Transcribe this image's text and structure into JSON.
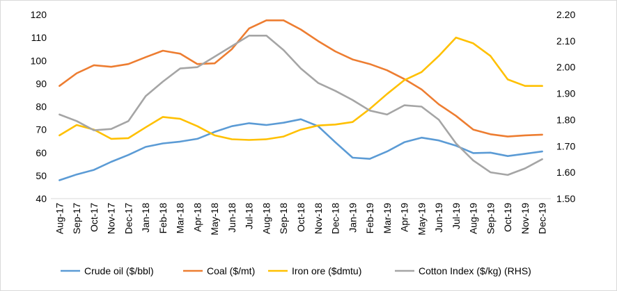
{
  "chart_data": {
    "type": "line",
    "categories": [
      "Aug-17",
      "Sep-17",
      "Oct-17",
      "Nov-17",
      "Dec-17",
      "Jan-18",
      "Feb-18",
      "Mar-18",
      "Apr-18",
      "May-18",
      "Jun-18",
      "Jul-18",
      "Aug-18",
      "Sep-18",
      "Oct-18",
      "Nov-18",
      "Dec-18",
      "Jan-19",
      "Feb-19",
      "Mar-19",
      "Apr-19",
      "May-19",
      "Jun-19",
      "Jul-19",
      "Aug-19",
      "Sep-19",
      "Oct-19",
      "Nov-19",
      "Dec-19"
    ],
    "ylim": [
      40,
      120
    ],
    "yticks": [
      40,
      50,
      60,
      70,
      80,
      90,
      100,
      110,
      120
    ],
    "y2lim": [
      1.5,
      2.2
    ],
    "y2ticks": [
      "1.50",
      "1.60",
      "1.70",
      "1.80",
      "1.90",
      "2.00",
      "2.10",
      "2.20"
    ],
    "grid": false,
    "legend_position": "bottom",
    "series": [
      {
        "name": "Crude oil ($/bbl)",
        "axis": "left",
        "color": "#5b9bd5",
        "values": [
          48,
          50.5,
          52.5,
          56,
          59,
          62.5,
          64,
          64.8,
          66,
          69,
          71.5,
          72.8,
          72,
          73,
          74.5,
          71.5,
          64.5,
          57.8,
          57.3,
          60.5,
          64.5,
          66.5,
          65.3,
          63,
          59.8,
          60,
          58.5,
          59.5,
          60.5
        ]
      },
      {
        "name": "Coal ($/mt)",
        "axis": "left",
        "color": "#ed7d31",
        "values": [
          89,
          94.5,
          98,
          97.3,
          98.5,
          101.5,
          104.3,
          103,
          98.5,
          98.8,
          105,
          114,
          117.5,
          117.5,
          113.5,
          108.5,
          104,
          100.5,
          98.5,
          95.8,
          92,
          87.5,
          81,
          76,
          70,
          68,
          67,
          67.5,
          67.8
        ]
      },
      {
        "name": "Iron ore ($dmtu)",
        "axis": "left",
        "color": "#ffc000",
        "values": [
          67.5,
          72,
          70,
          66,
          66.3,
          71,
          75.5,
          74.7,
          71.5,
          67.5,
          65.8,
          65.5,
          65.8,
          67,
          70,
          71.8,
          72.2,
          73.3,
          79,
          85.5,
          91.5,
          95,
          102,
          110,
          107.5,
          102,
          91.8,
          89,
          89
        ]
      },
      {
        "name": "Cotton Index ($/kg) (RHS)",
        "axis": "right",
        "color": "#a5a5a5",
        "values": [
          1.82,
          1.795,
          1.76,
          1.765,
          1.795,
          1.89,
          1.945,
          1.995,
          2.0,
          2.04,
          2.08,
          2.12,
          2.12,
          2.065,
          1.995,
          1.94,
          1.91,
          1.875,
          1.835,
          1.82,
          1.855,
          1.85,
          1.8,
          1.71,
          1.645,
          1.6,
          1.59,
          1.615,
          1.65
        ]
      }
    ]
  }
}
